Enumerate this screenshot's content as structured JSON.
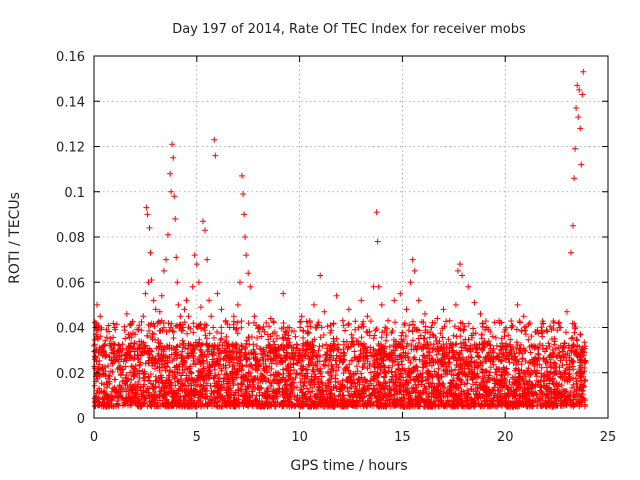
{
  "chart_data": {
    "type": "scatter",
    "title": "Day 197 of 2014, Rate Of TEC Index for receiver mobs",
    "xlabel": "GPS time / hours",
    "ylabel": "ROTI / TECUs",
    "xlim": [
      0,
      25
    ],
    "ylim": [
      0,
      0.16
    ],
    "xticks": [
      0,
      5,
      10,
      15,
      20,
      25
    ],
    "xtick_labels": [
      "0",
      "5",
      "10",
      "15",
      "20",
      "25"
    ],
    "yticks": [
      0,
      0.02,
      0.04,
      0.06,
      0.08,
      0.1,
      0.12,
      0.14,
      0.16
    ],
    "ytick_labels": [
      "0",
      "0.02",
      "0.04",
      "0.06",
      "0.08",
      "0.1",
      "0.12",
      "0.14",
      "0.16"
    ],
    "grid": true,
    "marker": "+",
    "color": "#ff0000",
    "series": [
      {
        "name": "ROTI",
        "x": [
          0.05,
          0.1,
          0.15,
          0.2,
          0.3,
          0.45,
          0.6,
          0.8,
          1.0,
          1.2,
          1.4,
          1.6,
          1.8,
          2.0,
          2.2,
          2.4,
          2.5,
          2.55,
          2.6,
          2.65,
          2.7,
          2.75,
          2.8,
          2.9,
          3.0,
          3.1,
          3.2,
          3.3,
          3.4,
          3.5,
          3.6,
          3.7,
          3.75,
          3.8,
          3.85,
          3.9,
          3.95,
          4.0,
          4.05,
          4.1,
          4.2,
          4.3,
          4.4,
          4.5,
          4.6,
          4.8,
          4.9,
          5.0,
          5.1,
          5.2,
          5.3,
          5.4,
          5.5,
          5.6,
          5.7,
          5.8,
          5.85,
          5.9,
          6.0,
          6.2,
          6.4,
          6.6,
          6.8,
          7.0,
          7.1,
          7.2,
          7.25,
          7.3,
          7.35,
          7.4,
          7.5,
          7.6,
          7.8,
          8.0,
          8.3,
          8.6,
          8.9,
          9.2,
          9.5,
          9.8,
          10.1,
          10.4,
          10.7,
          11.0,
          11.2,
          11.5,
          11.8,
          12.1,
          12.4,
          12.7,
          13.0,
          13.3,
          13.6,
          13.75,
          13.8,
          13.85,
          14.0,
          14.3,
          14.6,
          14.9,
          15.2,
          15.4,
          15.5,
          15.6,
          15.8,
          16.1,
          16.4,
          16.7,
          17.0,
          17.3,
          17.6,
          17.7,
          17.8,
          17.9,
          18.2,
          18.5,
          18.8,
          19.1,
          19.4,
          19.7,
          20.0,
          20.3,
          20.6,
          20.9,
          21.2,
          21.5,
          21.8,
          22.1,
          22.4,
          22.7,
          23.0,
          23.2,
          23.3,
          23.35,
          23.4,
          23.45,
          23.5,
          23.55,
          23.6,
          23.65,
          23.7,
          23.75,
          23.8
        ],
        "y": [
          0.022,
          0.042,
          0.05,
          0.035,
          0.045,
          0.03,
          0.028,
          0.032,
          0.04,
          0.025,
          0.03,
          0.046,
          0.033,
          0.037,
          0.041,
          0.045,
          0.055,
          0.093,
          0.09,
          0.06,
          0.084,
          0.073,
          0.061,
          0.052,
          0.048,
          0.042,
          0.047,
          0.054,
          0.065,
          0.07,
          0.081,
          0.108,
          0.1,
          0.121,
          0.115,
          0.098,
          0.088,
          0.071,
          0.06,
          0.05,
          0.045,
          0.04,
          0.048,
          0.052,
          0.045,
          0.058,
          0.072,
          0.068,
          0.06,
          0.049,
          0.087,
          0.083,
          0.07,
          0.052,
          0.045,
          0.04,
          0.123,
          0.116,
          0.055,
          0.048,
          0.043,
          0.04,
          0.045,
          0.05,
          0.06,
          0.107,
          0.099,
          0.09,
          0.08,
          0.072,
          0.064,
          0.058,
          0.045,
          0.04,
          0.038,
          0.044,
          0.035,
          0.055,
          0.04,
          0.036,
          0.045,
          0.038,
          0.05,
          0.063,
          0.047,
          0.041,
          0.054,
          0.043,
          0.048,
          0.039,
          0.052,
          0.045,
          0.058,
          0.091,
          0.078,
          0.058,
          0.05,
          0.043,
          0.052,
          0.055,
          0.048,
          0.06,
          0.07,
          0.065,
          0.052,
          0.046,
          0.04,
          0.044,
          0.048,
          0.043,
          0.05,
          0.065,
          0.068,
          0.063,
          0.058,
          0.051,
          0.046,
          0.04,
          0.036,
          0.043,
          0.039,
          0.04,
          0.05,
          0.045,
          0.042,
          0.038,
          0.036,
          0.033,
          0.035,
          0.04,
          0.047,
          0.073,
          0.085,
          0.106,
          0.119,
          0.137,
          0.147,
          0.133,
          0.145,
          0.128,
          0.112,
          0.143,
          0.153
        ],
        "note": "Dense band of values between 0.005 and 0.03 across all hours 0-23.9 is also plotted."
      }
    ]
  }
}
